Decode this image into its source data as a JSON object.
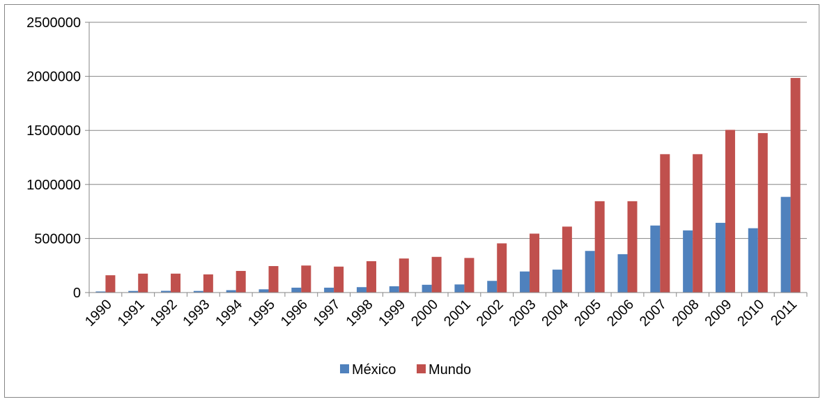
{
  "chart_data": {
    "type": "bar",
    "categories": [
      "1990",
      "1991",
      "1992",
      "1993",
      "1994",
      "1995",
      "1996",
      "1997",
      "1998",
      "1999",
      "2000",
      "2001",
      "2002",
      "2003",
      "2004",
      "2005",
      "2006",
      "2007",
      "2008",
      "2009",
      "2010",
      "2011"
    ],
    "series": [
      {
        "name": "México",
        "color": "#4F81BD",
        "values": [
          10000,
          15000,
          16000,
          15000,
          22000,
          30000,
          45000,
          45000,
          50000,
          58000,
          72000,
          75000,
          108000,
          195000,
          212000,
          385000,
          355000,
          620000,
          575000,
          645000,
          595000,
          885000
        ]
      },
      {
        "name": "Mundo",
        "color": "#C0504D",
        "values": [
          160000,
          175000,
          175000,
          168000,
          200000,
          245000,
          250000,
          240000,
          290000,
          315000,
          330000,
          320000,
          455000,
          545000,
          610000,
          845000,
          845000,
          1280000,
          1280000,
          1505000,
          1475000,
          1985000
        ]
      }
    ],
    "yticks": [
      "0",
      "500000",
      "1000000",
      "1500000",
      "2000000",
      "2500000"
    ],
    "ylim": [
      0,
      2500000
    ],
    "grid": true,
    "legend": "bottom",
    "title": "",
    "xlabel": "",
    "ylabel": ""
  }
}
